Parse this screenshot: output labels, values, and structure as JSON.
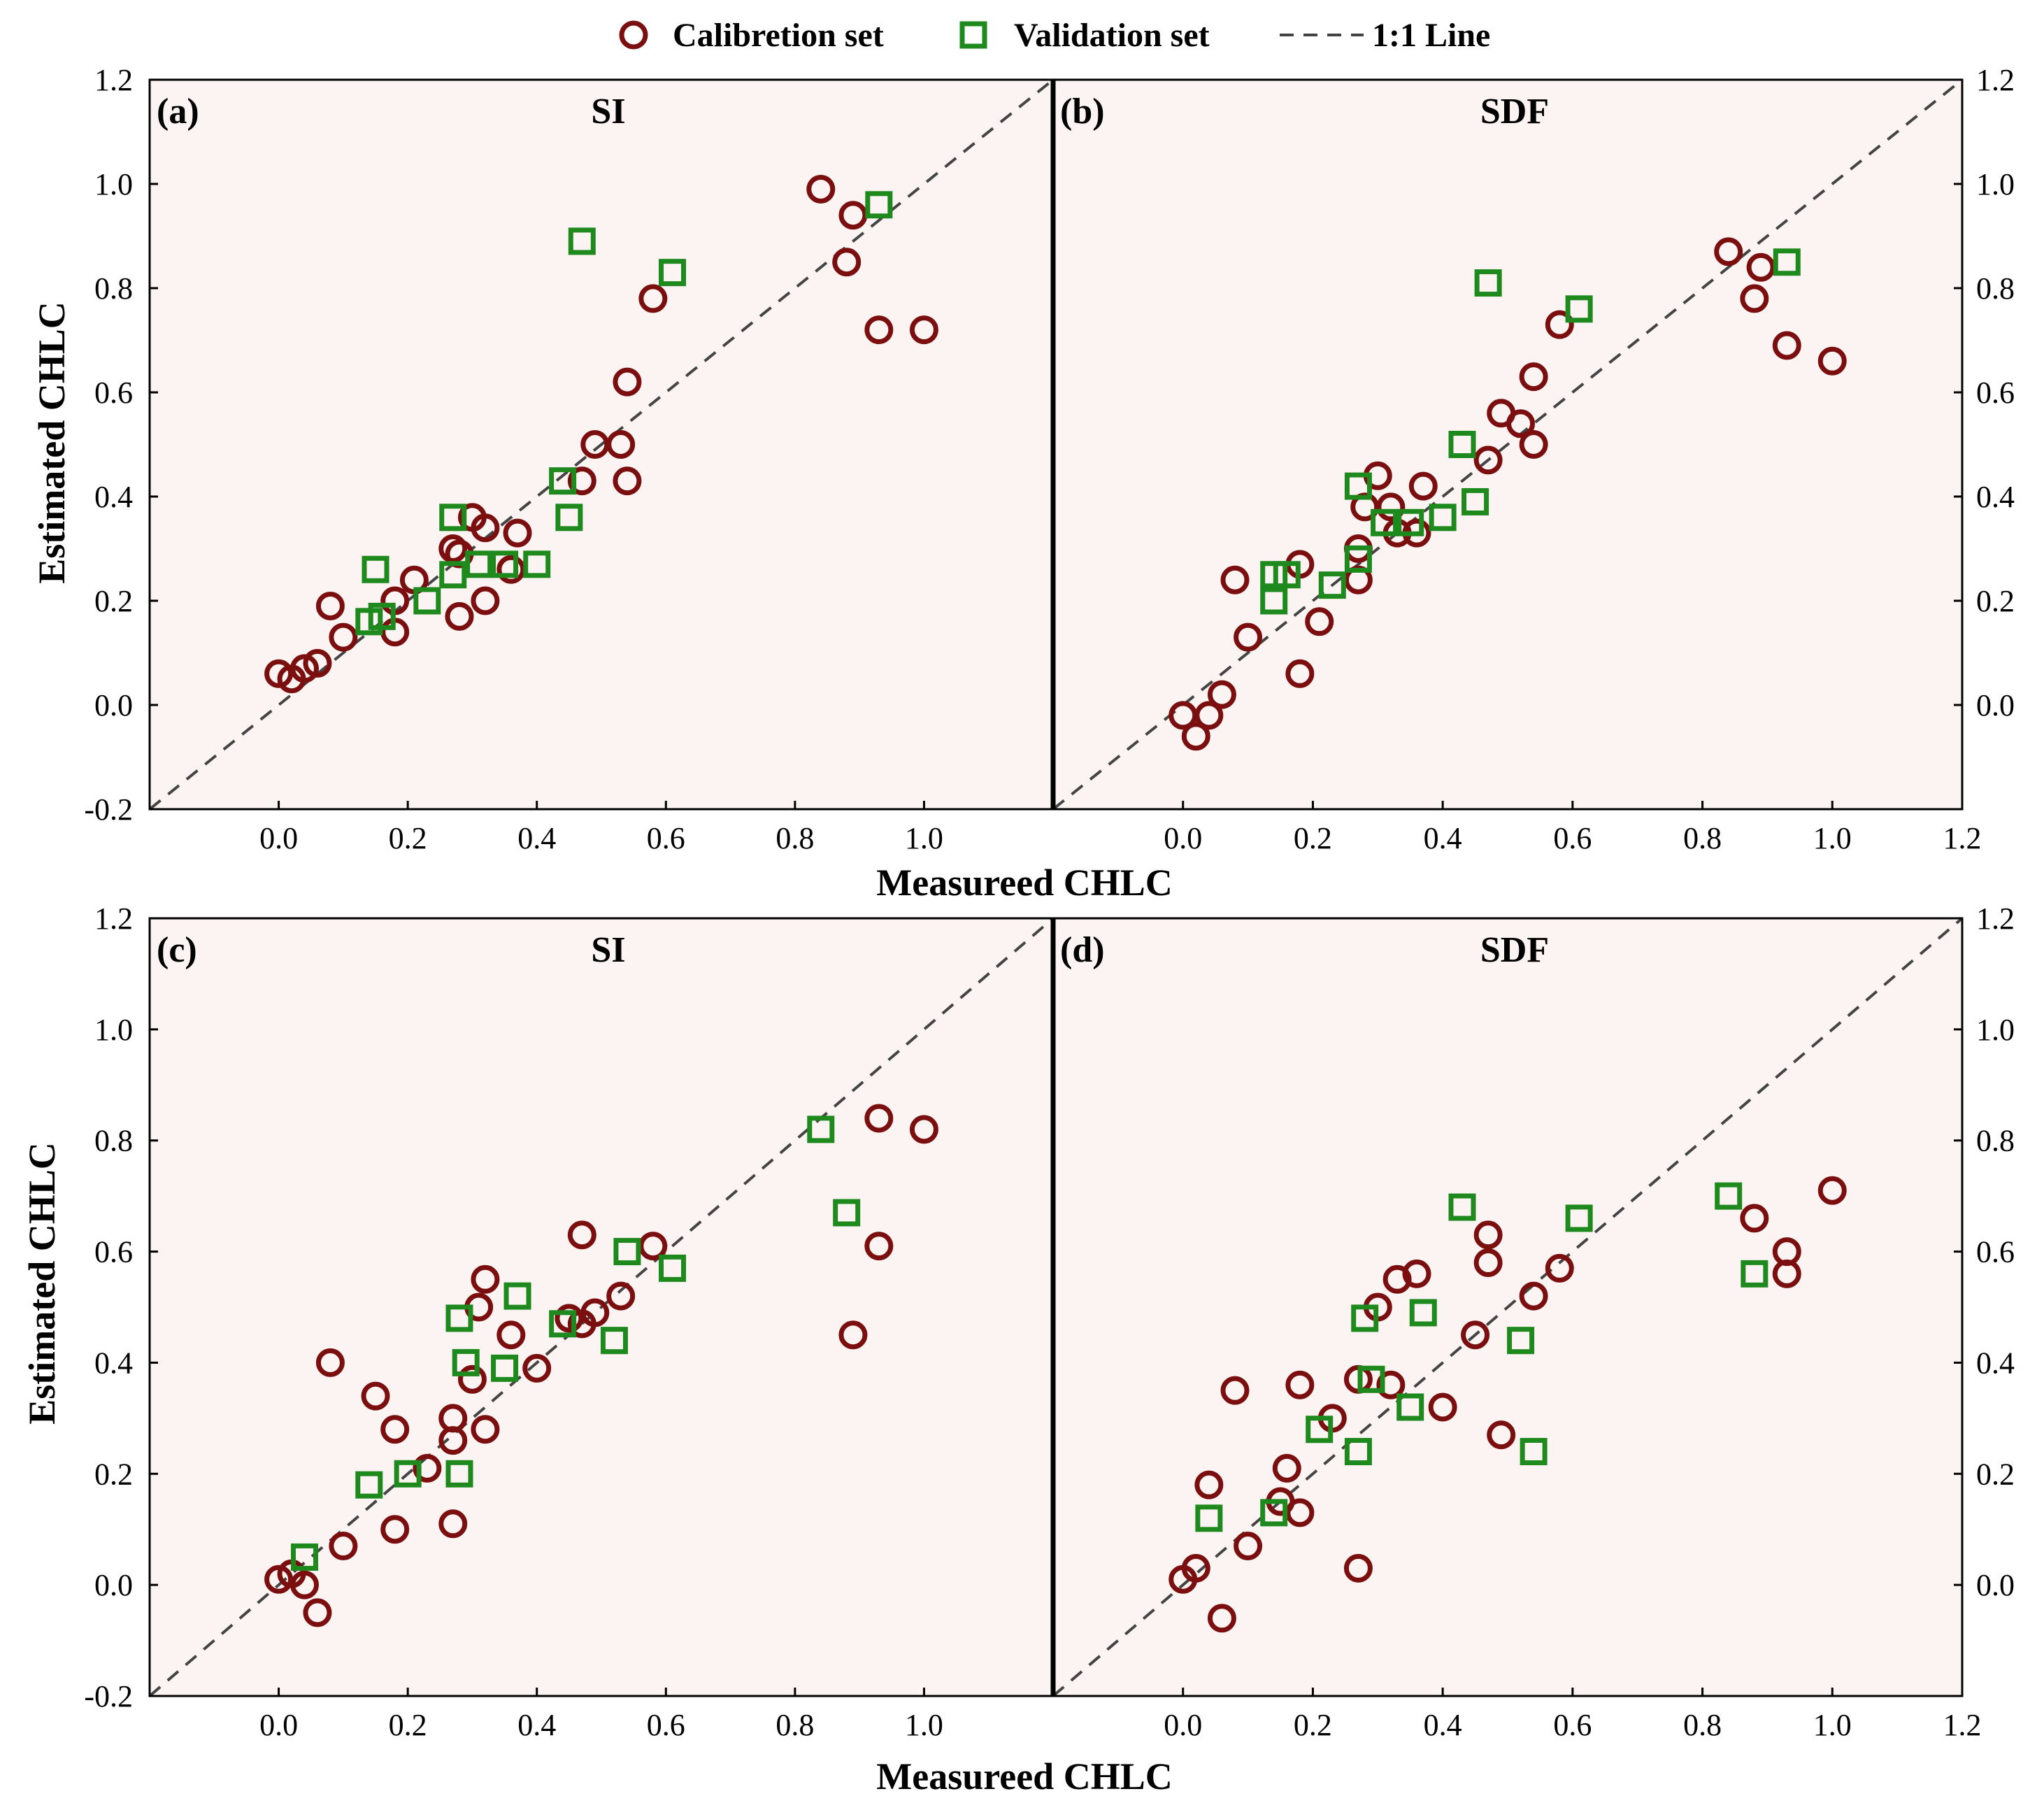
{
  "colors": {
    "calibration": "#7b0f0f",
    "validation": "#1e8a1e",
    "panel_bg": "#fbf4f2",
    "line": "#444444"
  },
  "legend": {
    "calibration": "Calibretion set",
    "validation": "Validation set",
    "line": "1:1 Line"
  },
  "chart_data": [
    {
      "type": "scatter",
      "panel": "(a)",
      "title": "SI",
      "xlabel": "Measureed CHLC",
      "ylabel": "Estimated CHLC",
      "xlim": [
        -0.2,
        1.2
      ],
      "ylim": [
        -0.2,
        1.2
      ],
      "xticks": [
        "0.0",
        "0.2",
        "0.4",
        "0.6",
        "0.8",
        "1.0"
      ],
      "yticks": [
        "-0.2",
        "0.0",
        "0.2",
        "0.4",
        "0.6",
        "0.8",
        "1.0",
        "1.2"
      ],
      "series": [
        {
          "name": "Calibretion set",
          "marker": "circle",
          "points": [
            [
              0.0,
              0.06
            ],
            [
              0.02,
              0.05
            ],
            [
              0.04,
              0.07
            ],
            [
              0.06,
              0.08
            ],
            [
              0.08,
              0.19
            ],
            [
              0.1,
              0.13
            ],
            [
              0.18,
              0.14
            ],
            [
              0.18,
              0.2
            ],
            [
              0.21,
              0.24
            ],
            [
              0.27,
              0.3
            ],
            [
              0.28,
              0.29
            ],
            [
              0.28,
              0.17
            ],
            [
              0.3,
              0.36
            ],
            [
              0.32,
              0.34
            ],
            [
              0.32,
              0.2
            ],
            [
              0.36,
              0.26
            ],
            [
              0.37,
              0.33
            ],
            [
              0.47,
              0.43
            ],
            [
              0.49,
              0.5
            ],
            [
              0.53,
              0.5
            ],
            [
              0.54,
              0.43
            ],
            [
              0.54,
              0.62
            ],
            [
              0.58,
              0.78
            ],
            [
              0.84,
              0.99
            ],
            [
              0.88,
              0.85
            ],
            [
              0.89,
              0.94
            ],
            [
              0.93,
              0.72
            ],
            [
              1.0,
              0.72
            ]
          ]
        },
        {
          "name": "Validation set",
          "marker": "square",
          "points": [
            [
              0.14,
              0.16
            ],
            [
              0.15,
              0.26
            ],
            [
              0.16,
              0.17
            ],
            [
              0.23,
              0.2
            ],
            [
              0.27,
              0.25
            ],
            [
              0.27,
              0.36
            ],
            [
              0.31,
              0.27
            ],
            [
              0.35,
              0.27
            ],
            [
              0.4,
              0.27
            ],
            [
              0.44,
              0.43
            ],
            [
              0.45,
              0.36
            ],
            [
              0.47,
              0.89
            ],
            [
              0.61,
              0.83
            ],
            [
              0.93,
              0.96
            ]
          ]
        }
      ]
    },
    {
      "type": "scatter",
      "panel": "(b)",
      "title": "SDF",
      "xlabel": "Measureed CHLC",
      "ylabel": "",
      "xlim": [
        -0.2,
        1.2
      ],
      "ylim": [
        -0.2,
        1.2
      ],
      "xticks": [
        "0.0",
        "0.2",
        "0.4",
        "0.6",
        "0.8",
        "1.0",
        "1.2"
      ],
      "yticks": [
        "0.0",
        "0.2",
        "0.4",
        "0.6",
        "0.8",
        "1.0",
        "1.2"
      ],
      "series": [
        {
          "name": "Calibretion set",
          "marker": "circle",
          "points": [
            [
              0.0,
              -0.02
            ],
            [
              0.02,
              -0.06
            ],
            [
              0.04,
              -0.02
            ],
            [
              0.06,
              0.02
            ],
            [
              0.08,
              0.24
            ],
            [
              0.1,
              0.13
            ],
            [
              0.18,
              0.06
            ],
            [
              0.18,
              0.27
            ],
            [
              0.21,
              0.16
            ],
            [
              0.27,
              0.24
            ],
            [
              0.27,
              0.3
            ],
            [
              0.28,
              0.38
            ],
            [
              0.3,
              0.44
            ],
            [
              0.32,
              0.38
            ],
            [
              0.33,
              0.33
            ],
            [
              0.36,
              0.33
            ],
            [
              0.37,
              0.42
            ],
            [
              0.47,
              0.47
            ],
            [
              0.49,
              0.56
            ],
            [
              0.52,
              0.54
            ],
            [
              0.54,
              0.5
            ],
            [
              0.54,
              0.63
            ],
            [
              0.58,
              0.73
            ],
            [
              0.84,
              0.87
            ],
            [
              0.88,
              0.78
            ],
            [
              0.89,
              0.84
            ],
            [
              0.93,
              0.69
            ],
            [
              1.0,
              0.66
            ]
          ]
        },
        {
          "name": "Validation set",
          "marker": "square",
          "points": [
            [
              0.14,
              0.2
            ],
            [
              0.14,
              0.25
            ],
            [
              0.16,
              0.25
            ],
            [
              0.23,
              0.23
            ],
            [
              0.27,
              0.28
            ],
            [
              0.27,
              0.42
            ],
            [
              0.31,
              0.35
            ],
            [
              0.35,
              0.35
            ],
            [
              0.4,
              0.36
            ],
            [
              0.43,
              0.5
            ],
            [
              0.45,
              0.39
            ],
            [
              0.47,
              0.81
            ],
            [
              0.61,
              0.76
            ],
            [
              0.93,
              0.85
            ]
          ]
        }
      ]
    },
    {
      "type": "scatter",
      "panel": "(c)",
      "title": "SI",
      "xlabel": "Measureed CHLC",
      "ylabel": "Estimated CHLC",
      "xlim": [
        -0.2,
        1.2
      ],
      "ylim": [
        -0.2,
        1.2
      ],
      "xticks": [
        "0.0",
        "0.2",
        "0.4",
        "0.6",
        "0.8",
        "1.0"
      ],
      "yticks": [
        "-0.2",
        "0.0",
        "0.2",
        "0.4",
        "0.6",
        "0.8",
        "1.0",
        "1.2"
      ],
      "series": [
        {
          "name": "Calibretion set",
          "marker": "circle",
          "points": [
            [
              0.0,
              0.01
            ],
            [
              0.02,
              0.02
            ],
            [
              0.04,
              0.0
            ],
            [
              0.06,
              -0.05
            ],
            [
              0.08,
              0.4
            ],
            [
              0.1,
              0.07
            ],
            [
              0.15,
              0.34
            ],
            [
              0.18,
              0.28
            ],
            [
              0.18,
              0.1
            ],
            [
              0.23,
              0.21
            ],
            [
              0.27,
              0.3
            ],
            [
              0.27,
              0.26
            ],
            [
              0.27,
              0.11
            ],
            [
              0.3,
              0.37
            ],
            [
              0.31,
              0.5
            ],
            [
              0.32,
              0.55
            ],
            [
              0.32,
              0.28
            ],
            [
              0.36,
              0.45
            ],
            [
              0.4,
              0.39
            ],
            [
              0.45,
              0.48
            ],
            [
              0.47,
              0.47
            ],
            [
              0.47,
              0.63
            ],
            [
              0.49,
              0.49
            ],
            [
              0.53,
              0.52
            ],
            [
              0.58,
              0.61
            ],
            [
              0.89,
              0.45
            ],
            [
              0.93,
              0.61
            ],
            [
              0.93,
              0.84
            ],
            [
              1.0,
              0.82
            ]
          ]
        },
        {
          "name": "Validation set",
          "marker": "square",
          "points": [
            [
              0.04,
              0.05
            ],
            [
              0.14,
              0.18
            ],
            [
              0.2,
              0.2
            ],
            [
              0.28,
              0.2
            ],
            [
              0.28,
              0.48
            ],
            [
              0.29,
              0.4
            ],
            [
              0.35,
              0.39
            ],
            [
              0.37,
              0.52
            ],
            [
              0.44,
              0.47
            ],
            [
              0.52,
              0.44
            ],
            [
              0.54,
              0.6
            ],
            [
              0.61,
              0.57
            ],
            [
              0.84,
              0.82
            ],
            [
              0.88,
              0.67
            ]
          ]
        }
      ]
    },
    {
      "type": "scatter",
      "panel": "(d)",
      "title": "SDF",
      "xlabel": "Measureed CHLC",
      "ylabel": "",
      "xlim": [
        -0.2,
        1.2
      ],
      "ylim": [
        -0.2,
        1.2
      ],
      "xticks": [
        "0.0",
        "0.2",
        "0.4",
        "0.6",
        "0.8",
        "1.0",
        "1.2"
      ],
      "yticks": [
        "0.0",
        "0.2",
        "0.4",
        "0.6",
        "0.8",
        "1.0",
        "1.2"
      ],
      "series": [
        {
          "name": "Calibretion set",
          "marker": "circle",
          "points": [
            [
              0.0,
              0.01
            ],
            [
              0.02,
              0.03
            ],
            [
              0.04,
              0.18
            ],
            [
              0.06,
              -0.06
            ],
            [
              0.08,
              0.35
            ],
            [
              0.1,
              0.07
            ],
            [
              0.15,
              0.15
            ],
            [
              0.16,
              0.21
            ],
            [
              0.18,
              0.36
            ],
            [
              0.18,
              0.13
            ],
            [
              0.23,
              0.3
            ],
            [
              0.27,
              0.37
            ],
            [
              0.27,
              0.03
            ],
            [
              0.3,
              0.5
            ],
            [
              0.32,
              0.36
            ],
            [
              0.33,
              0.55
            ],
            [
              0.36,
              0.56
            ],
            [
              0.4,
              0.32
            ],
            [
              0.45,
              0.45
            ],
            [
              0.47,
              0.58
            ],
            [
              0.47,
              0.63
            ],
            [
              0.49,
              0.27
            ],
            [
              0.54,
              0.52
            ],
            [
              0.58,
              0.57
            ],
            [
              0.88,
              0.66
            ],
            [
              0.93,
              0.56
            ],
            [
              0.93,
              0.6
            ],
            [
              1.0,
              0.71
            ]
          ]
        },
        {
          "name": "Validation set",
          "marker": "square",
          "points": [
            [
              0.04,
              0.12
            ],
            [
              0.14,
              0.13
            ],
            [
              0.21,
              0.28
            ],
            [
              0.27,
              0.24
            ],
            [
              0.28,
              0.48
            ],
            [
              0.29,
              0.37
            ],
            [
              0.35,
              0.32
            ],
            [
              0.37,
              0.49
            ],
            [
              0.43,
              0.68
            ],
            [
              0.52,
              0.44
            ],
            [
              0.54,
              0.24
            ],
            [
              0.61,
              0.66
            ],
            [
              0.84,
              0.7
            ],
            [
              0.88,
              0.56
            ]
          ]
        }
      ]
    }
  ]
}
